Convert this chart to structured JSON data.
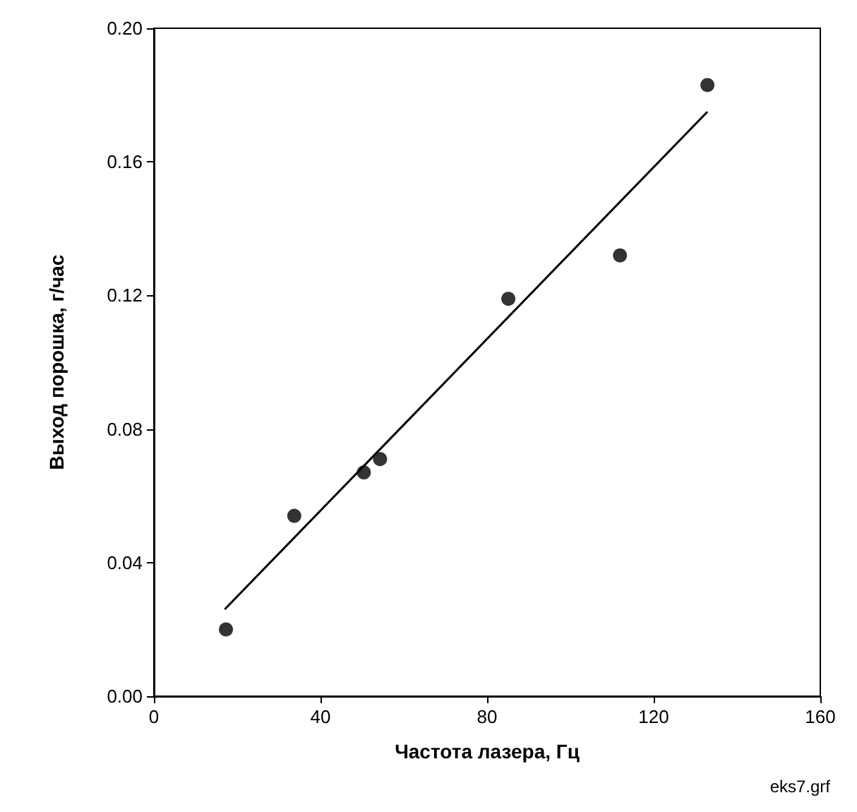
{
  "chart_data": {
    "type": "scatter",
    "xlabel": "Частота лазера, Гц",
    "ylabel": "Выход порошка, г/час",
    "xlim": [
      0,
      160
    ],
    "ylim": [
      0,
      0.2
    ],
    "xticks": [
      0,
      40,
      80,
      120,
      160
    ],
    "yticks": [
      {
        "value": 0,
        "label": "0.00"
      },
      0.04,
      0.08,
      0.12,
      0.16,
      {
        "value": 0.2,
        "label": "0.20"
      }
    ],
    "grid": false,
    "marker": "circle",
    "annotations": [
      "eks7.grf"
    ],
    "series": [
      {
        "type": "scatter",
        "color": "#000000",
        "x": [
          17.3,
          33.7,
          50.4,
          54.3,
          85.1,
          111.9,
          132.9
        ],
        "values": [
          0.02,
          0.054,
          0.067,
          0.071,
          0.119,
          0.132,
          0.183
        ]
      },
      {
        "type": "line",
        "color": "#000000",
        "line_style": "solid",
        "marker": "none",
        "x": [
          17,
          132.9
        ],
        "values": [
          0.026,
          0.175
        ]
      }
    ]
  }
}
